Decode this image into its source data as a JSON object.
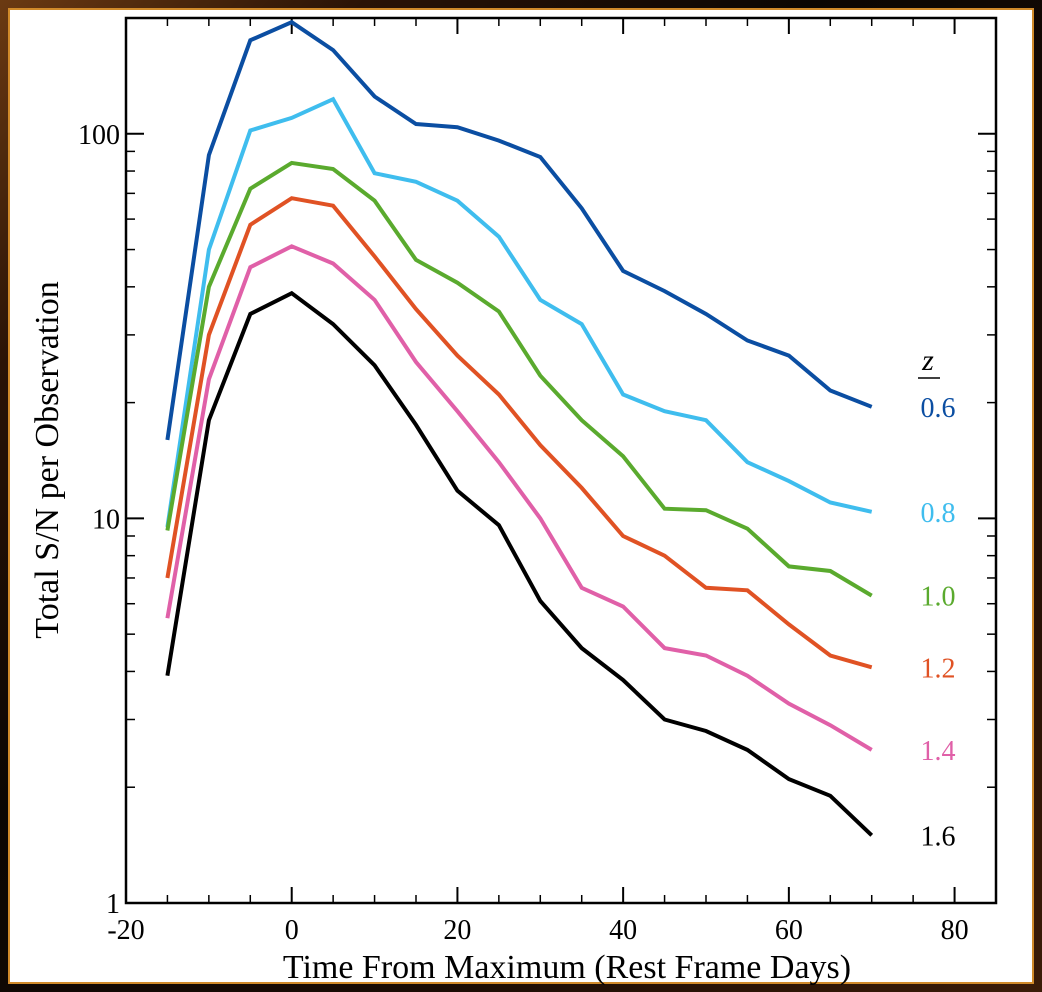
{
  "chart_data": {
    "type": "line",
    "xlabel": "Time From Maximum (Rest Frame Days)",
    "ylabel": "Total S/N per Observation",
    "xlim": [
      -20,
      85
    ],
    "ylim": [
      1,
      200
    ],
    "yscale": "log",
    "x_ticks": [
      -20,
      0,
      20,
      40,
      60,
      80
    ],
    "x_tick_labels": [
      "-20",
      "0",
      "20",
      "40",
      "60",
      "80"
    ],
    "y_ticks": [
      1,
      10,
      100
    ],
    "y_tick_labels": [
      "1",
      "10",
      "100"
    ],
    "grid": false,
    "legend": {
      "title": "z",
      "placement": "right"
    },
    "x": [
      -15,
      -10,
      -5,
      0,
      5,
      10,
      15,
      20,
      25,
      30,
      35,
      40,
      45,
      50,
      55,
      60,
      65,
      70
    ],
    "series": [
      {
        "name": "0.6",
        "color": "#0b4ea2",
        "values": [
          16,
          88,
          175,
          195,
          165,
          125,
          106,
          104,
          96,
          87,
          64,
          44,
          39,
          34,
          29,
          26.5,
          21.5,
          19.5
        ]
      },
      {
        "name": "0.8",
        "color": "#3fbdee",
        "values": [
          9.5,
          50,
          102,
          110,
          123,
          79,
          75,
          67,
          54,
          37,
          32,
          21,
          19,
          18,
          14,
          12.5,
          11,
          10.4
        ]
      },
      {
        "name": "1.0",
        "color": "#5aaa2e",
        "values": [
          9.3,
          40,
          72,
          84,
          81,
          67,
          47,
          41,
          34.5,
          23.5,
          18,
          14.5,
          10.6,
          10.5,
          9.4,
          7.5,
          7.3,
          6.3
        ]
      },
      {
        "name": "1.2",
        "color": "#e05224",
        "values": [
          7,
          30,
          58,
          68,
          65,
          48,
          35,
          26.5,
          21,
          15.5,
          12,
          9,
          8,
          6.6,
          6.5,
          5.3,
          4.4,
          4.1
        ]
      },
      {
        "name": "1.4",
        "color": "#e060a8",
        "values": [
          5.5,
          23,
          45,
          51,
          46,
          37,
          25.5,
          19,
          14,
          10,
          6.6,
          5.9,
          4.6,
          4.4,
          3.9,
          3.3,
          2.9,
          2.5
        ]
      },
      {
        "name": "1.6",
        "color": "#000000",
        "values": [
          3.9,
          18,
          34,
          38.5,
          32,
          25,
          17.5,
          11.8,
          9.6,
          6.1,
          4.6,
          3.8,
          3.0,
          2.8,
          2.5,
          2.1,
          1.9,
          1.5
        ]
      }
    ]
  }
}
